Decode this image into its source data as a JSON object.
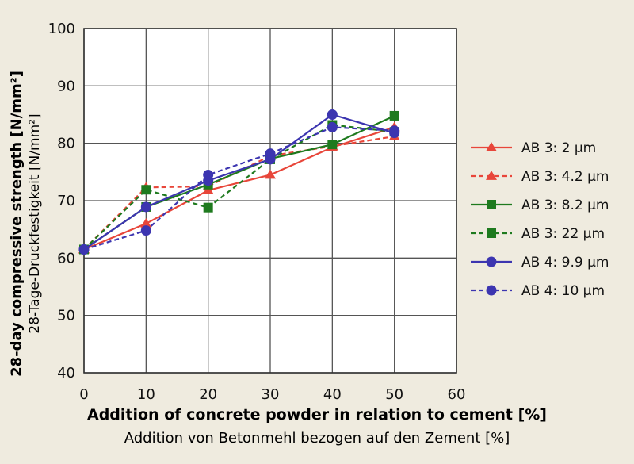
{
  "chart_data": {
    "type": "line",
    "xlabel": "Addition of concrete powder in relation to cement [%]",
    "xlabel_secondary": "Addition von Betonmehl bezogen auf den Zement [%]",
    "ylabel": "28-day compressive strength [N/mm²]",
    "ylabel_secondary": "28-Tage-Druckfestigkeit [N/mm²]",
    "xlim": [
      0,
      60
    ],
    "ylim": [
      40,
      100
    ],
    "xticks": [
      0,
      10,
      20,
      30,
      40,
      50,
      60
    ],
    "yticks": [
      40,
      50,
      60,
      70,
      80,
      90,
      100
    ],
    "grid": true,
    "legend_position": "right",
    "x": [
      0,
      10,
      20,
      30,
      40,
      50
    ],
    "series": [
      {
        "name": "AB 3: 2 µm",
        "values": [
          61.5,
          66,
          71.8,
          74.5,
          79.3,
          82.8
        ],
        "color": "#e8463a",
        "dash": false,
        "marker": "triangle"
      },
      {
        "name": "AB 3: 4.2 µm",
        "values": [
          61.5,
          72.3,
          72.5,
          77.8,
          79.5,
          81.2
        ],
        "color": "#e8463a",
        "dash": true,
        "marker": "triangle"
      },
      {
        "name": "AB 3: 8.2 µm",
        "values": [
          61.5,
          68.9,
          72.8,
          77.3,
          79.8,
          84.8
        ],
        "color": "#1e7a1e",
        "dash": false,
        "marker": "square"
      },
      {
        "name": "AB 3: 22 µm",
        "values": [
          61.5,
          71.9,
          68.8,
          77.2,
          83.2,
          82
        ],
        "color": "#1e7a1e",
        "dash": true,
        "marker": "square"
      },
      {
        "name": "AB 4: 9.9 µm",
        "values": [
          61.5,
          68.9,
          73.5,
          77.2,
          85,
          81.8
        ],
        "color": "#3c35b0",
        "dash": false,
        "marker": "circle"
      },
      {
        "name": "AB 4: 10 µm",
        "values": [
          61.5,
          64.8,
          74.5,
          78.2,
          82.8,
          82.2
        ],
        "color": "#3c35b0",
        "dash": true,
        "marker": "circle"
      }
    ]
  }
}
